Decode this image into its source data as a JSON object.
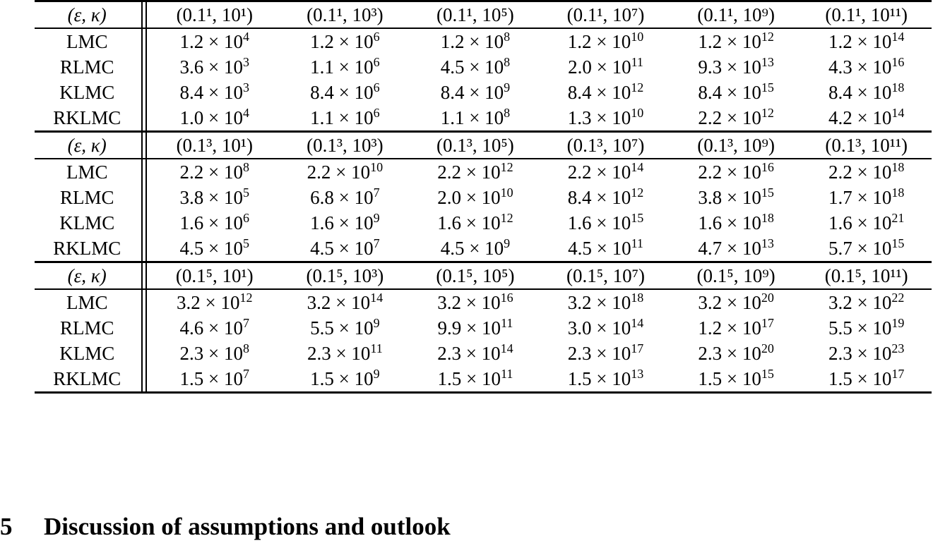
{
  "table": {
    "param_label": "(ε, κ)",
    "blocks": [
      {
        "headers": [
          "(0.1¹, 10¹)",
          "(0.1¹, 10³)",
          "(0.1¹, 10⁵)",
          "(0.1¹, 10⁷)",
          "(0.1¹, 10⁹)",
          "(0.1¹, 10¹¹)"
        ],
        "rows": [
          {
            "method": "LMC",
            "values": [
              [
                "1.2",
                "4"
              ],
              [
                "1.2",
                "6"
              ],
              [
                "1.2",
                "8"
              ],
              [
                "1.2",
                "10"
              ],
              [
                "1.2",
                "12"
              ],
              [
                "1.2",
                "14"
              ]
            ]
          },
          {
            "method": "RLMC",
            "values": [
              [
                "3.6",
                "3"
              ],
              [
                "1.1",
                "6"
              ],
              [
                "4.5",
                "8"
              ],
              [
                "2.0",
                "11"
              ],
              [
                "9.3",
                "13"
              ],
              [
                "4.3",
                "16"
              ]
            ]
          },
          {
            "method": "KLMC",
            "values": [
              [
                "8.4",
                "3"
              ],
              [
                "8.4",
                "6"
              ],
              [
                "8.4",
                "9"
              ],
              [
                "8.4",
                "12"
              ],
              [
                "8.4",
                "15"
              ],
              [
                "8.4",
                "18"
              ]
            ]
          },
          {
            "method": "RKLMC",
            "values": [
              [
                "1.0",
                "4"
              ],
              [
                "1.1",
                "6"
              ],
              [
                "1.1",
                "8"
              ],
              [
                "1.3",
                "10"
              ],
              [
                "2.2",
                "12"
              ],
              [
                "4.2",
                "14"
              ]
            ]
          }
        ]
      },
      {
        "headers": [
          "(0.1³, 10¹)",
          "(0.1³, 10³)",
          "(0.1³, 10⁵)",
          "(0.1³, 10⁷)",
          "(0.1³, 10⁹)",
          "(0.1³, 10¹¹)"
        ],
        "rows": [
          {
            "method": "LMC",
            "values": [
              [
                "2.2",
                "8"
              ],
              [
                "2.2",
                "10"
              ],
              [
                "2.2",
                "12"
              ],
              [
                "2.2",
                "14"
              ],
              [
                "2.2",
                "16"
              ],
              [
                "2.2",
                "18"
              ]
            ]
          },
          {
            "method": "RLMC",
            "values": [
              [
                "3.8",
                "5"
              ],
              [
                "6.8",
                "7"
              ],
              [
                "2.0",
                "10"
              ],
              [
                "8.4",
                "12"
              ],
              [
                "3.8",
                "15"
              ],
              [
                "1.7",
                "18"
              ]
            ]
          },
          {
            "method": "KLMC",
            "values": [
              [
                "1.6",
                "6"
              ],
              [
                "1.6",
                "9"
              ],
              [
                "1.6",
                "12"
              ],
              [
                "1.6",
                "15"
              ],
              [
                "1.6",
                "18"
              ],
              [
                "1.6",
                "21"
              ]
            ]
          },
          {
            "method": "RKLMC",
            "values": [
              [
                "4.5",
                "5"
              ],
              [
                "4.5",
                "7"
              ],
              [
                "4.5",
                "9"
              ],
              [
                "4.5",
                "11"
              ],
              [
                "4.7",
                "13"
              ],
              [
                "5.7",
                "15"
              ]
            ]
          }
        ]
      },
      {
        "headers": [
          "(0.1⁵, 10¹)",
          "(0.1⁵, 10³)",
          "(0.1⁵, 10⁵)",
          "(0.1⁵, 10⁷)",
          "(0.1⁵, 10⁹)",
          "(0.1⁵, 10¹¹)"
        ],
        "rows": [
          {
            "method": "LMC",
            "values": [
              [
                "3.2",
                "12"
              ],
              [
                "3.2",
                "14"
              ],
              [
                "3.2",
                "16"
              ],
              [
                "3.2",
                "18"
              ],
              [
                "3.2",
                "20"
              ],
              [
                "3.2",
                "22"
              ]
            ]
          },
          {
            "method": "RLMC",
            "values": [
              [
                "4.6",
                "7"
              ],
              [
                "5.5",
                "9"
              ],
              [
                "9.9",
                "11"
              ],
              [
                "3.0",
                "14"
              ],
              [
                "1.2",
                "17"
              ],
              [
                "5.5",
                "19"
              ]
            ]
          },
          {
            "method": "KLMC",
            "values": [
              [
                "2.3",
                "8"
              ],
              [
                "2.3",
                "11"
              ],
              [
                "2.3",
                "14"
              ],
              [
                "2.3",
                "17"
              ],
              [
                "2.3",
                "20"
              ],
              [
                "2.3",
                "23"
              ]
            ]
          },
          {
            "method": "RKLMC",
            "values": [
              [
                "1.5",
                "7"
              ],
              [
                "1.5",
                "9"
              ],
              [
                "1.5",
                "11"
              ],
              [
                "1.5",
                "13"
              ],
              [
                "1.5",
                "15"
              ],
              [
                "1.5",
                "17"
              ]
            ]
          }
        ]
      }
    ]
  },
  "section": {
    "number": "5",
    "title": "Discussion of assumptions and outlook"
  }
}
